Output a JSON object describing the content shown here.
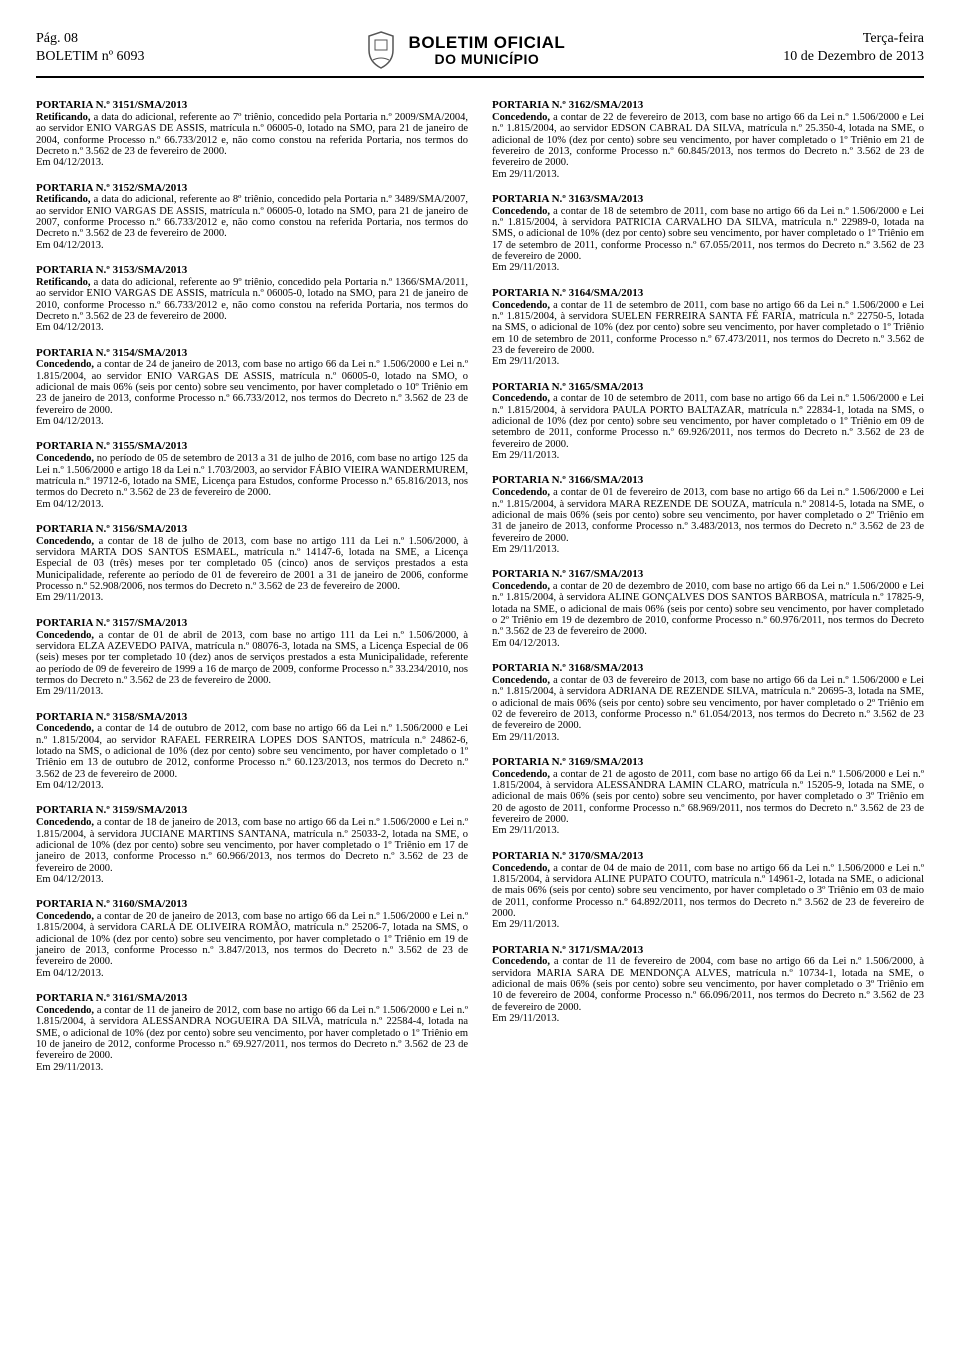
{
  "header": {
    "page_label": "Pág. 08",
    "bulletin_label": "BOLETIM nº 6093",
    "title_line1": "BOLETIM OFICIAL",
    "title_line2": "DO MUNICÍPIO",
    "weekday": "Terça-feira",
    "date": "10 de Dezembro de 2013"
  },
  "left_portarias": [
    {
      "title": "PORTARIA N.º 3151/SMA/2013",
      "lead": "Retificando,",
      "body": " a data do adicional, referente ao 7º triênio, concedido pela Portaria n.º 2009/SMA/2004, ao servidor ENIO VARGAS DE ASSIS, matrícula n.º 06005-0, lotado na SMO, para 21 de janeiro de 2004, conforme Processo n.º 66.733/2012 e, não como constou na referida Portaria, nos termos do Decreto n.º 3.562 de 23 de fevereiro de 2000.",
      "date": "Em 04/12/2013."
    },
    {
      "title": "PORTARIA N.º 3152/SMA/2013",
      "lead": "Retificando,",
      "body": " a data do adicional, referente ao 8º triênio, concedido pela Portaria n.º 3489/SMA/2007, ao servidor ENIO VARGAS DE ASSIS, matrícula n.º 06005-0, lotado na SMO, para 21 de janeiro de 2007, conforme Processo n.º 66.733/2012 e, não como constou na referida Portaria, nos termos do Decreto n.º 3.562 de 23 de fevereiro de 2000.",
      "date": "Em 04/12/2013."
    },
    {
      "title": "PORTARIA N.º 3153/SMA/2013",
      "lead": "Retificando,",
      "body": " a data do adicional, referente ao 9º triênio, concedido pela Portaria n.º 1366/SMA/2011, ao servidor ENIO VARGAS DE ASSIS, matrícula n.º 06005-0, lotado na SMO, para 21 de janeiro de 2010, conforme Processo n.º 66.733/2012 e, não como constou na referida Portaria, nos termos do Decreto n.º 3.562 de 23 de fevereiro de 2000.",
      "date": "Em 04/12/2013."
    },
    {
      "title": "PORTARIA N.º 3154/SMA/2013",
      "lead": "Concedendo,",
      "body": " a contar de 24 de janeiro de 2013, com base no artigo 66 da Lei n.º 1.506/2000 e Lei n.º 1.815/2004, ao servidor ENIO VARGAS DE ASSIS, matrícula n.º 06005-0, lotado na SMO, o adicional de mais 06% (seis por cento) sobre seu vencimento, por haver completado o 10º Triênio em 23 de janeiro de 2013, conforme Processo n.º 66.733/2012, nos termos do Decreto n.º 3.562 de 23 de fevereiro de 2000.",
      "date": "Em 04/12/2013."
    },
    {
      "title": "PORTARIA N.º 3155/SMA/2013",
      "lead": "Concedendo,",
      "body": " no período de 05 de setembro de 2013 a 31 de julho de 2016, com base no artigo 125 da Lei n.º 1.506/2000 e artigo 18 da Lei n.º 1.703/2003, ao servidor FÁBIO VIEIRA WANDERMUREM, matrícula n.º 19712-6, lotado na SME, Licença para Estudos, conforme Processo n.º 65.816/2013, nos termos do Decreto n.º 3.562 de 23 de fevereiro de 2000.",
      "date": "Em 04/12/2013."
    },
    {
      "title": "PORTARIA N.º 3156/SMA/2013",
      "lead": "Concedendo,",
      "body": " a contar de 18 de julho de 2013, com base no artigo 111 da Lei n.º 1.506/2000, à servidora MARTA DOS SANTOS ESMAEL, matrícula n.º 14147-6, lotada na SME, a Licença Especial de 03 (três) meses por ter completado 05 (cinco) anos de serviços prestados a esta Municipalidade, referente ao período de 01 de fevereiro de 2001 a 31 de janeiro de 2006, conforme Processo n.º 52.908/2006, nos termos do Decreto n.º 3.562 de 23 de fevereiro de 2000.",
      "date": "Em 29/11/2013."
    },
    {
      "title": "PORTARIA N.º 3157/SMA/2013",
      "lead": "Concedendo,",
      "body": " a contar de 01 de abril de 2013, com base no artigo 111 da Lei n.º 1.506/2000, à servidora ELZA AZEVEDO PAIVA, matrícula n.º 08076-3, lotada na SMS, a Licença Especial de 06 (seis) meses por ter completado 10 (dez) anos de serviços prestados a esta Municipalidade, referente ao período de 09 de fevereiro de 1999 a 16 de março de 2009, conforme Processo n.º 33.234/2010, nos termos do Decreto n.º 3.562 de 23 de fevereiro de 2000.",
      "date": "Em 29/11/2013."
    },
    {
      "title": "PORTARIA N.º 3158/SMA/2013",
      "lead": "Concedendo,",
      "body": " a contar de 14 de outubro de 2012, com base no artigo 66 da Lei n.º 1.506/2000 e Lei n.º 1.815/2004, ao servidor RAFAEL FERREIRA LOPES DOS SANTOS, matrícula n.º 24862-6, lotado na SMS, o adicional de 10% (dez por cento) sobre seu vencimento, por haver completado o 1º Triênio em 13 de outubro de 2012, conforme Processo n.º 60.123/2013, nos termos do Decreto n.º 3.562 de 23 de fevereiro de 2000.",
      "date": "Em 04/12/2013."
    },
    {
      "title": "PORTARIA N.º 3159/SMA/2013",
      "lead": "Concedendo,",
      "body": " a contar de 18 de janeiro de 2013, com base no artigo 66 da Lei n.º 1.506/2000 e Lei n.º 1.815/2004, à servidora JUCIANE MARTINS SANTANA, matrícula n.º 25033-2, lotada na SME, o adicional de 10% (dez por cento) sobre seu vencimento, por haver completado o 1º Triênio em 17 de janeiro de 2013, conforme Processo n.º 60.966/2013, nos termos do Decreto n.º 3.562 de 23 de fevereiro de 2000.",
      "date": "Em 04/12/2013."
    },
    {
      "title": "PORTARIA N.º 3160/SMA/2013",
      "lead": "Concedendo,",
      "body": " a contar de 20 de janeiro de 2013, com base no artigo 66 da Lei n.º 1.506/2000 e Lei n.º 1.815/2004, à servidora CARLA DE OLIVEIRA ROMÃO, matrícula n.º 25206-7, lotada na SMS, o adicional de 10% (dez por cento) sobre seu vencimento, por haver completado o 1º Triênio em 19 de janeiro de 2013, conforme Processo n.º 3.847/2013, nos termos do Decreto n.º 3.562 de 23 de fevereiro de 2000.",
      "date": "Em 04/12/2013."
    },
    {
      "title": "PORTARIA N.º 3161/SMA/2013",
      "lead": "Concedendo,",
      "body": " a contar de 11 de janeiro de 2012, com base no artigo 66 da Lei n.º 1.506/2000 e Lei n.º 1.815/2004, à servidora ALESSANDRA NOGUEIRA DA SILVA, matrícula n.º 22584-4, lotada na SME, o adicional de 10% (dez por cento) sobre seu vencimento, por haver completado o 1º Triênio em 10 de janeiro de 2012, conforme Processo n.º 69.927/2011, nos termos do Decreto n.º 3.562 de 23 de fevereiro de 2000.",
      "date": "Em 29/11/2013."
    }
  ],
  "right_portarias": [
    {
      "title": "PORTARIA N.º 3162/SMA/2013",
      "lead": "Concedendo,",
      "body": " a contar de 22 de fevereiro de 2013, com base no artigo 66 da Lei n.º 1.506/2000 e Lei n.º 1.815/2004, ao servidor EDSON CABRAL DA SILVA, matrícula n.º 25.350-4, lotada na SME, o adicional de 10% (dez por cento) sobre seu vencimento, por haver completado o 1º Triênio em 21 de fevereiro de 2013, conforme Processo n.º 60.845/2013, nos termos do Decreto n.º 3.562 de 23 de fevereiro de 2000.",
      "date": "Em 29/11/2013."
    },
    {
      "title": "PORTARIA N.º 3163/SMA/2013",
      "lead": "Concedendo,",
      "body": " a contar de 18 de setembro de 2011, com base no artigo 66 da Lei n.º 1.506/2000 e Lei n.º 1.815/2004, à servidora PATRICIA CARVALHO DA SILVA, matrícula n.º 22989-0, lotada na SMS, o adicional de 10% (dez por cento) sobre seu vencimento, por haver completado o 1º Triênio em 17 de setembro de 2011, conforme Processo n.º 67.055/2011, nos termos do Decreto n.º 3.562 de 23 de fevereiro de 2000.",
      "date": "Em 29/11/2013."
    },
    {
      "title": "PORTARIA N.º 3164/SMA/2013",
      "lead": "Concedendo,",
      "body": " a contar de 11 de setembro de 2011, com base no artigo 66 da Lei n.º 1.506/2000 e Lei n.º 1.815/2004, à servidora SUELEN FERREIRA SANTA FÉ FARIA, matrícula n.º 22750-5, lotada na SMS, o adicional de 10% (dez por cento) sobre seu vencimento, por haver completado o 1º Triênio em 10 de setembro de 2011, conforme Processo n.º 67.473/2011, nos termos do Decreto n.º 3.562 de 23 de fevereiro de 2000.",
      "date": "Em 29/11/2013."
    },
    {
      "title": "PORTARIA N.º 3165/SMA/2013",
      "lead": "Concedendo,",
      "body": " a contar de 10 de setembro de 2011, com base no artigo 66 da Lei n.º 1.506/2000 e Lei n.º 1.815/2004, à servidora PAULA PORTO BALTAZAR, matrícula n.º 22834-1, lotada na SMS, o adicional de 10% (dez por cento) sobre seu vencimento, por haver completado o 1º Triênio em 09 de setembro de 2011, conforme Processo n.º 69.926/2011, nos termos do Decreto n.º 3.562 de 23 de fevereiro de 2000.",
      "date": "Em 29/11/2013."
    },
    {
      "title": "PORTARIA N.º 3166/SMA/2013",
      "lead": "Concedendo,",
      "body": " a contar de 01 de fevereiro de 2013, com base no artigo 66 da Lei n.º 1.506/2000 e Lei n.º 1.815/2004, à servidora MARA REZENDE DE SOUZA, matrícula n.º 20814-5, lotada na SME, o adicional de mais 06% (seis por cento) sobre seu vencimento, por haver completado o 2º Triênio em 31 de janeiro de 2013, conforme Processo n.º 3.483/2013, nos termos do Decreto n.º 3.562 de 23 de fevereiro de 2000.",
      "date": "Em 29/11/2013."
    },
    {
      "title": "PORTARIA N.º 3167/SMA/2013",
      "lead": "Concedendo,",
      "body": " a contar de 20 de dezembro de 2010, com base no artigo 66 da Lei n.º 1.506/2000 e Lei n.º 1.815/2004, à servidora ALINE GONÇALVES DOS SANTOS BARBOSA, matrícula n.º 17825-9, lotada na SME, o adicional de mais 06% (seis por cento) sobre seu vencimento, por haver completado o 2º Triênio em 19 de dezembro de 2010, conforme Processo n.º 60.976/2011, nos termos do Decreto n.º 3.562 de 23 de fevereiro de 2000.",
      "date": "Em 04/12/2013."
    },
    {
      "title": "PORTARIA N.º 3168/SMA/2013",
      "lead": "Concedendo,",
      "body": " a contar de 03 de fevereiro de 2013, com base no artigo 66 da Lei n.º 1.506/2000 e Lei n.º 1.815/2004, à servidora ADRIANA DE REZENDE SILVA, matrícula n.º 20695-3, lotada na SME, o adicional de mais 06% (seis por cento) sobre seu vencimento, por haver completado o 2º Triênio em 02 de fevereiro de 2013, conforme Processo n.º 61.054/2013, nos termos do Decreto n.º 3.562 de 23 de fevereiro de 2000.",
      "date": "Em 29/11/2013."
    },
    {
      "title": "PORTARIA N.º 3169/SMA/2013",
      "lead": "Concedendo,",
      "body": " a contar de 21 de agosto de 2011, com base no artigo 66 da Lei n.º 1.506/2000 e Lei n.º 1.815/2004, à servidora ALESSANDRA LAMIN CLARO, matrícula n.º 15205-9, lotada na SME, o adicional de mais 06% (seis por cento) sobre seu vencimento, por haver completado o 3º Triênio em 20 de agosto de 2011, conforme Processo n.º 68.969/2011, nos termos do Decreto n.º 3.562 de 23 de fevereiro de 2000.",
      "date": "Em 29/11/2013."
    },
    {
      "title": "PORTARIA N.º 3170/SMA/2013",
      "lead": "Concedendo,",
      "body": " a contar de 04 de maio de 2011, com base no artigo 66 da Lei n.º 1.506/2000 e Lei n.º 1.815/2004, à servidora ALINE PUPATO COUTO, matrícula n.º 14961-2, lotada na SME, o adicional de mais 06% (seis por cento) sobre seu vencimento, por haver completado o 3º Triênio em 03 de maio de 2011, conforme Processo n.º 64.892/2011, nos termos do Decreto n.º 3.562 de 23 de fevereiro de 2000.",
      "date": "Em 29/11/2013."
    },
    {
      "title": "PORTARIA N.º 3171/SMA/2013",
      "lead": "Concedendo,",
      "body": " a contar de 11 de fevereiro de 2004, com base no artigo 66 da Lei n.º 1.506/2000, à servidora MARIA SARA DE MENDONÇA ALVES, matrícula n.º 10734-1, lotada na SME, o adicional de mais 06% (seis por cento) sobre seu vencimento, por haver completado o 3º Triênio em 10 de fevereiro de 2004, conforme Processo n.º 66.096/2011, nos termos do Decreto n.º 3.562 de 23 de fevereiro de 2000.",
      "date": "Em 29/11/2013."
    }
  ]
}
